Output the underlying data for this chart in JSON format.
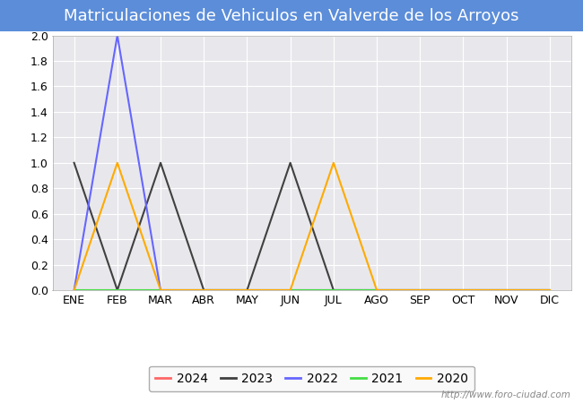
{
  "title": "Matriculaciones de Vehiculos en Valverde de los Arroyos",
  "title_bg_color": "#5b8dd9",
  "title_text_color": "#ffffff",
  "months": [
    "ENE",
    "FEB",
    "MAR",
    "ABR",
    "MAY",
    "JUN",
    "JUL",
    "AGO",
    "SEP",
    "OCT",
    "NOV",
    "DIC"
  ],
  "series": {
    "2024": {
      "color": "#ff6666",
      "data": [
        0,
        0,
        0,
        0,
        0,
        0,
        0,
        0,
        0,
        0,
        0,
        0
      ]
    },
    "2023": {
      "color": "#404040",
      "data": [
        1,
        0,
        1,
        0,
        0,
        1,
        0,
        0,
        0,
        0,
        0,
        0
      ]
    },
    "2022": {
      "color": "#6666ff",
      "data": [
        0,
        2,
        0,
        0,
        0,
        0,
        0,
        0,
        0,
        0,
        0,
        0
      ]
    },
    "2021": {
      "color": "#44dd44",
      "data": [
        0,
        0,
        0,
        0,
        0,
        0,
        0,
        0,
        0,
        0,
        0,
        0
      ]
    },
    "2020": {
      "color": "#ffaa00",
      "data": [
        0,
        1,
        0,
        0,
        0,
        0,
        1,
        0,
        0,
        0,
        0,
        0
      ]
    }
  },
  "ylim": [
    0,
    2.0
  ],
  "yticks": [
    0.0,
    0.2,
    0.4,
    0.6,
    0.8,
    1.0,
    1.2,
    1.4,
    1.6,
    1.8,
    2.0
  ],
  "plot_bg_color": "#e8e8ec",
  "grid_color": "#ffffff",
  "fig_bg_color": "#ffffff",
  "watermark": "http://www.foro-ciudad.com",
  "legend_order": [
    "2024",
    "2023",
    "2022",
    "2021",
    "2020"
  ],
  "title_fontsize": 13,
  "tick_fontsize": 9
}
